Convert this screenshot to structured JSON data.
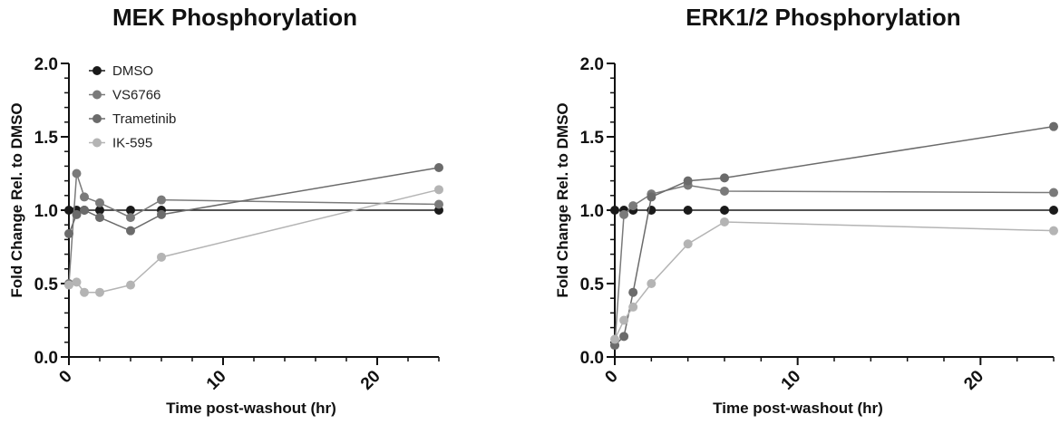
{
  "chart_data": [
    {
      "type": "line",
      "title": "MEK Phosphorylation",
      "xlabel": "Time post-washout (hr)",
      "ylabel": "Fold Change Rel. to DMSO",
      "xlim": [
        0,
        24
      ],
      "ylim": [
        0,
        2.0
      ],
      "xticks": [
        0,
        10,
        20
      ],
      "yticks": [
        0.0,
        0.5,
        1.0,
        1.5,
        2.0
      ],
      "xtick_labels": [
        "0",
        "10",
        "20"
      ],
      "ytick_labels": [
        "0.0",
        "0.5",
        "1.0",
        "1.5",
        "2.0"
      ],
      "grid": false,
      "legend": "top-left",
      "series": [
        {
          "name": "DMSO",
          "color": "#1a1a1a",
          "x": [
            0,
            0.5,
            1,
            2,
            4,
            6,
            24
          ],
          "y": [
            1.0,
            1.0,
            1.0,
            1.0,
            1.0,
            1.0,
            1.0
          ]
        },
        {
          "name": "VS6766",
          "color": "#7a7a7a",
          "x": [
            0,
            0.5,
            1,
            2,
            4,
            6,
            24
          ],
          "y": [
            0.5,
            1.25,
            1.09,
            1.05,
            0.95,
            1.07,
            1.04
          ]
        },
        {
          "name": "Trametinib",
          "color": "#6b6b6b",
          "x": [
            0,
            0.5,
            1,
            2,
            4,
            6,
            24
          ],
          "y": [
            0.84,
            0.97,
            1.0,
            0.95,
            0.86,
            0.97,
            1.29
          ]
        },
        {
          "name": "IK-595",
          "color": "#b4b4b4",
          "x": [
            0,
            0.5,
            1,
            2,
            4,
            6,
            24
          ],
          "y": [
            0.49,
            0.51,
            0.44,
            0.44,
            0.49,
            0.68,
            1.14
          ]
        }
      ]
    },
    {
      "type": "line",
      "title": "ERK1/2 Phosphorylation",
      "xlabel": "Time post-washout (hr)",
      "ylabel": "Fold Change Rel. to DMSO",
      "xlim": [
        0,
        24
      ],
      "ylim": [
        0,
        2.0
      ],
      "xticks": [
        0,
        10,
        20
      ],
      "yticks": [
        0.0,
        0.5,
        1.0,
        1.5,
        2.0
      ],
      "xtick_labels": [
        "0",
        "10",
        "20"
      ],
      "ytick_labels": [
        "0.0",
        "0.5",
        "1.0",
        "1.5",
        "2.0"
      ],
      "grid": false,
      "legend": "",
      "series": [
        {
          "name": "DMSO",
          "color": "#1a1a1a",
          "x": [
            0,
            0.5,
            1,
            2,
            4,
            6,
            24
          ],
          "y": [
            1.0,
            1.0,
            1.0,
            1.0,
            1.0,
            1.0,
            1.0
          ]
        },
        {
          "name": "VS6766",
          "color": "#7a7a7a",
          "x": [
            0,
            0.5,
            1,
            2,
            4,
            6,
            24
          ],
          "y": [
            0.08,
            0.97,
            1.03,
            1.11,
            1.17,
            1.13,
            1.12
          ]
        },
        {
          "name": "Trametinib",
          "color": "#6b6b6b",
          "x": [
            0,
            0.5,
            1,
            2,
            4,
            6,
            24
          ],
          "y": [
            0.08,
            0.14,
            0.44,
            1.09,
            1.2,
            1.22,
            1.57
          ]
        },
        {
          "name": "IK-595",
          "color": "#b4b4b4",
          "x": [
            0,
            0.5,
            1,
            2,
            4,
            6,
            24
          ],
          "y": [
            0.12,
            0.25,
            0.34,
            0.5,
            0.77,
            0.92,
            0.86
          ]
        }
      ]
    }
  ]
}
